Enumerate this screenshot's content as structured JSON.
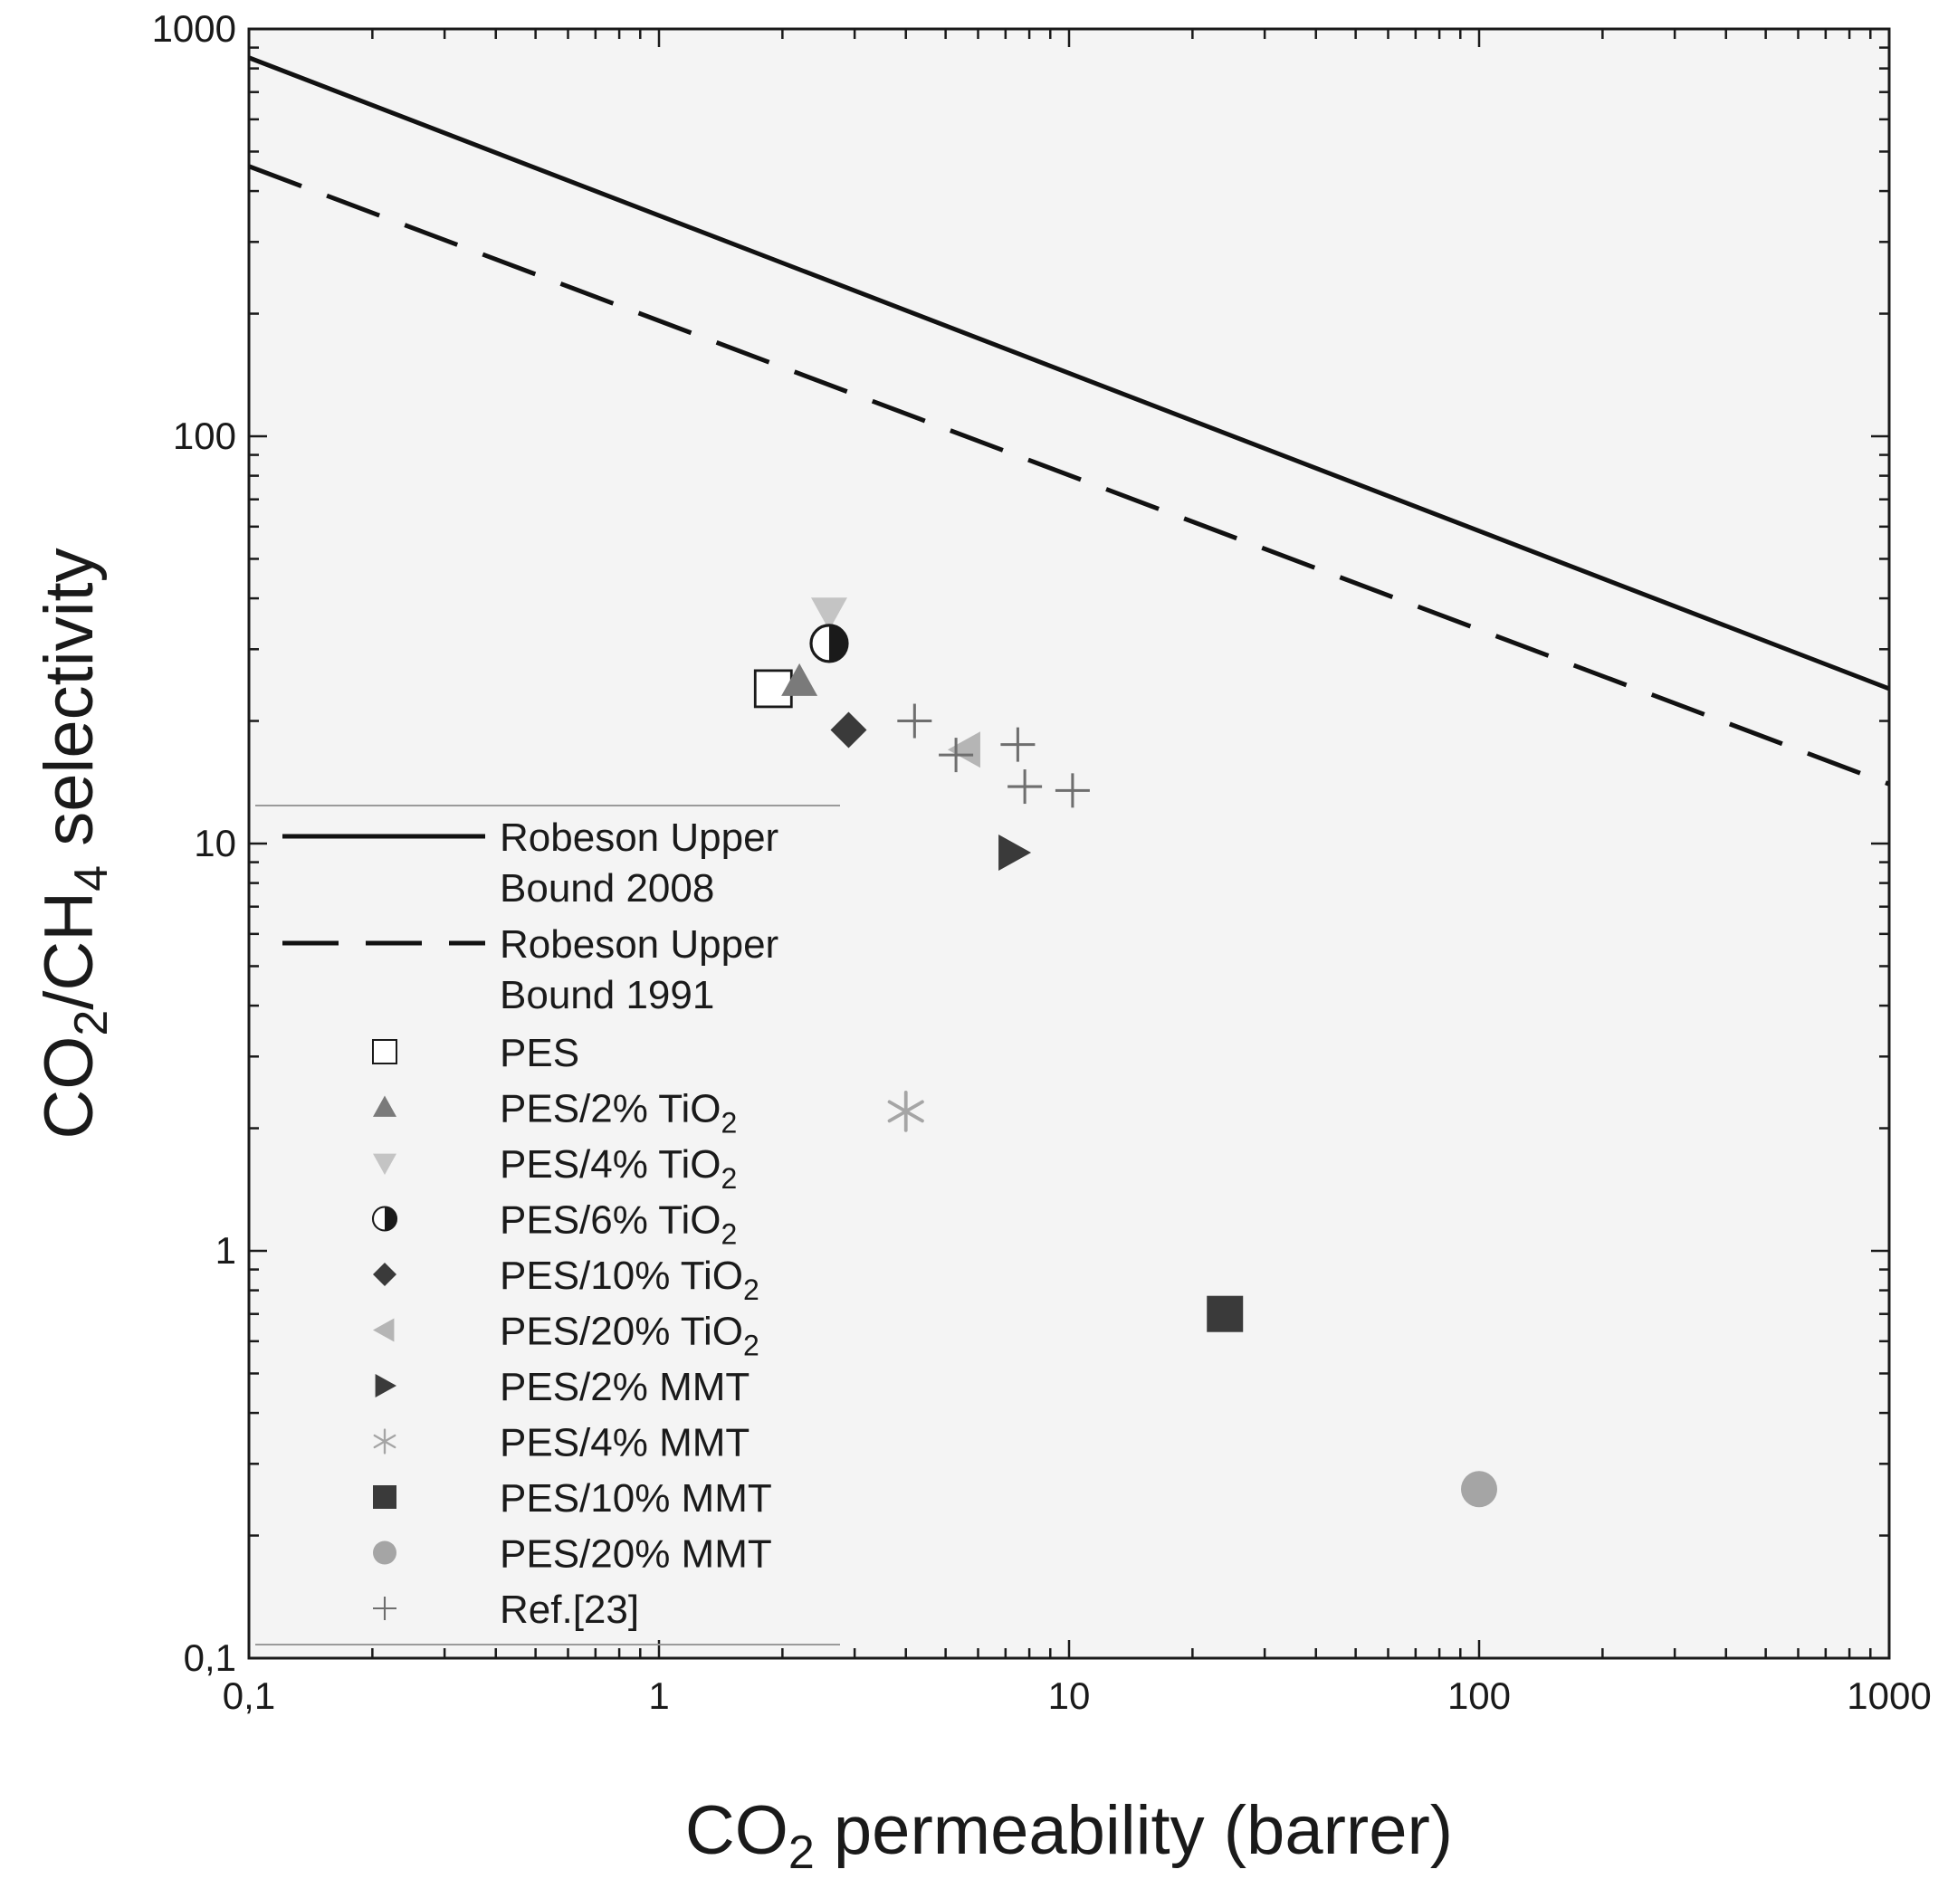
{
  "chart_data": {
    "type": "scatter",
    "xscale": "log",
    "yscale": "log",
    "xlim": [
      0.1,
      1000
    ],
    "ylim": [
      0.1,
      1000
    ],
    "xlabel_main": "CO",
    "xlabel_sub": "2",
    "xlabel_rest": " permeability (barrer)",
    "ylabel": {
      "p1": "CO",
      "s1": "2",
      "p2": "/CH",
      "s2": "4",
      "p3": " selectivity"
    },
    "xticks": [
      {
        "value": 0.1,
        "label": "0,1"
      },
      {
        "value": 1,
        "label": "1"
      },
      {
        "value": 10,
        "label": "10"
      },
      {
        "value": 100,
        "label": "100"
      },
      {
        "value": 1000,
        "label": "1000"
      }
    ],
    "yticks": [
      {
        "value": 0.1,
        "label": "0,1"
      },
      {
        "value": 1,
        "label": "1"
      },
      {
        "value": 10,
        "label": "10"
      },
      {
        "value": 100,
        "label": "100"
      },
      {
        "value": 1000,
        "label": "1000"
      }
    ],
    "lines": [
      {
        "name": "Robeson Upper Bound 2008",
        "x": [
          0.1,
          1000
        ],
        "y": [
          850,
          24
        ],
        "style": "solid"
      },
      {
        "name": "Robeson Upper Bound 1991",
        "x": [
          0.1,
          1000
        ],
        "y": [
          460,
          14
        ],
        "style": "dashed"
      }
    ],
    "series": [
      {
        "name": "PES",
        "marker": "square-open",
        "color": "#1a1a1a",
        "points": [
          [
            1.9,
            24
          ]
        ]
      },
      {
        "name": "PES/2% TiO2",
        "marker": "triangle-up",
        "color": "#7a7a7a",
        "points": [
          [
            2.2,
            25
          ]
        ]
      },
      {
        "name": "PES/4% TiO2",
        "marker": "triangle-down",
        "color": "#c4c4c4",
        "points": [
          [
            2.6,
            37
          ]
        ]
      },
      {
        "name": "PES/6% TiO2",
        "marker": "half-circle",
        "color": "#1a1a1a",
        "points": [
          [
            2.6,
            31
          ]
        ]
      },
      {
        "name": "PES/10% TiO2",
        "marker": "diamond",
        "color": "#3a3a3a",
        "points": [
          [
            2.9,
            19
          ]
        ]
      },
      {
        "name": "PES/20% TiO2",
        "marker": "triangle-left",
        "color": "#b5b5b5",
        "points": [
          [
            5.6,
            17
          ]
        ]
      },
      {
        "name": "PES/2% MMT",
        "marker": "triangle-right",
        "color": "#3a3a3a",
        "points": [
          [
            7.3,
            9.5
          ]
        ]
      },
      {
        "name": "PES/4% MMT",
        "marker": "asterisk",
        "color": "#a5a5a5",
        "points": [
          [
            4.0,
            2.2
          ]
        ]
      },
      {
        "name": "PES/10% MMT",
        "marker": "square",
        "color": "#3a3a3a",
        "points": [
          [
            24,
            0.7
          ]
        ]
      },
      {
        "name": "PES/20% MMT",
        "marker": "circle",
        "color": "#a5a5a5",
        "points": [
          [
            100,
            0.26
          ]
        ]
      },
      {
        "name": "Ref.[23]",
        "marker": "plus",
        "color": "#6e6e6e",
        "points": [
          [
            4.2,
            20
          ],
          [
            5.3,
            16.5
          ],
          [
            7.5,
            17.5
          ],
          [
            7.8,
            13.8
          ],
          [
            10.2,
            13.5
          ]
        ]
      }
    ],
    "legend": {
      "position": "lower-left",
      "line_entries": [
        {
          "line1": "Robeson Upper",
          "line2": "Bound 2008",
          "style": "solid"
        },
        {
          "line1": "Robeson Upper",
          "line2": "Bound 1991",
          "style": "dashed"
        }
      ],
      "marker_entries": [
        {
          "main": "PES",
          "sub": "",
          "marker": "square-open",
          "color": "#1a1a1a"
        },
        {
          "main": "PES/2% TiO",
          "sub": "2",
          "marker": "triangle-up",
          "color": "#7a7a7a"
        },
        {
          "main": "PES/4% TiO",
          "sub": "2",
          "marker": "triangle-down",
          "color": "#c4c4c4"
        },
        {
          "main": "PES/6% TiO",
          "sub": "2",
          "marker": "half-circle",
          "color": "#1a1a1a"
        },
        {
          "main": "PES/10% TiO",
          "sub": "2",
          "marker": "diamond",
          "color": "#3a3a3a"
        },
        {
          "main": "PES/20% TiO",
          "sub": "2",
          "marker": "triangle-left",
          "color": "#b5b5b5"
        },
        {
          "main": "PES/2% MMT",
          "sub": "",
          "marker": "triangle-right",
          "color": "#3a3a3a"
        },
        {
          "main": "PES/4% MMT",
          "sub": "",
          "marker": "asterisk",
          "color": "#a5a5a5"
        },
        {
          "main": "PES/10% MMT",
          "sub": "",
          "marker": "square",
          "color": "#3a3a3a"
        },
        {
          "main": "PES/20% MMT",
          "sub": "",
          "marker": "circle",
          "color": "#a5a5a5"
        },
        {
          "main": "Ref.[23]",
          "sub": "",
          "marker": "plus",
          "color": "#6e6e6e"
        }
      ]
    }
  }
}
